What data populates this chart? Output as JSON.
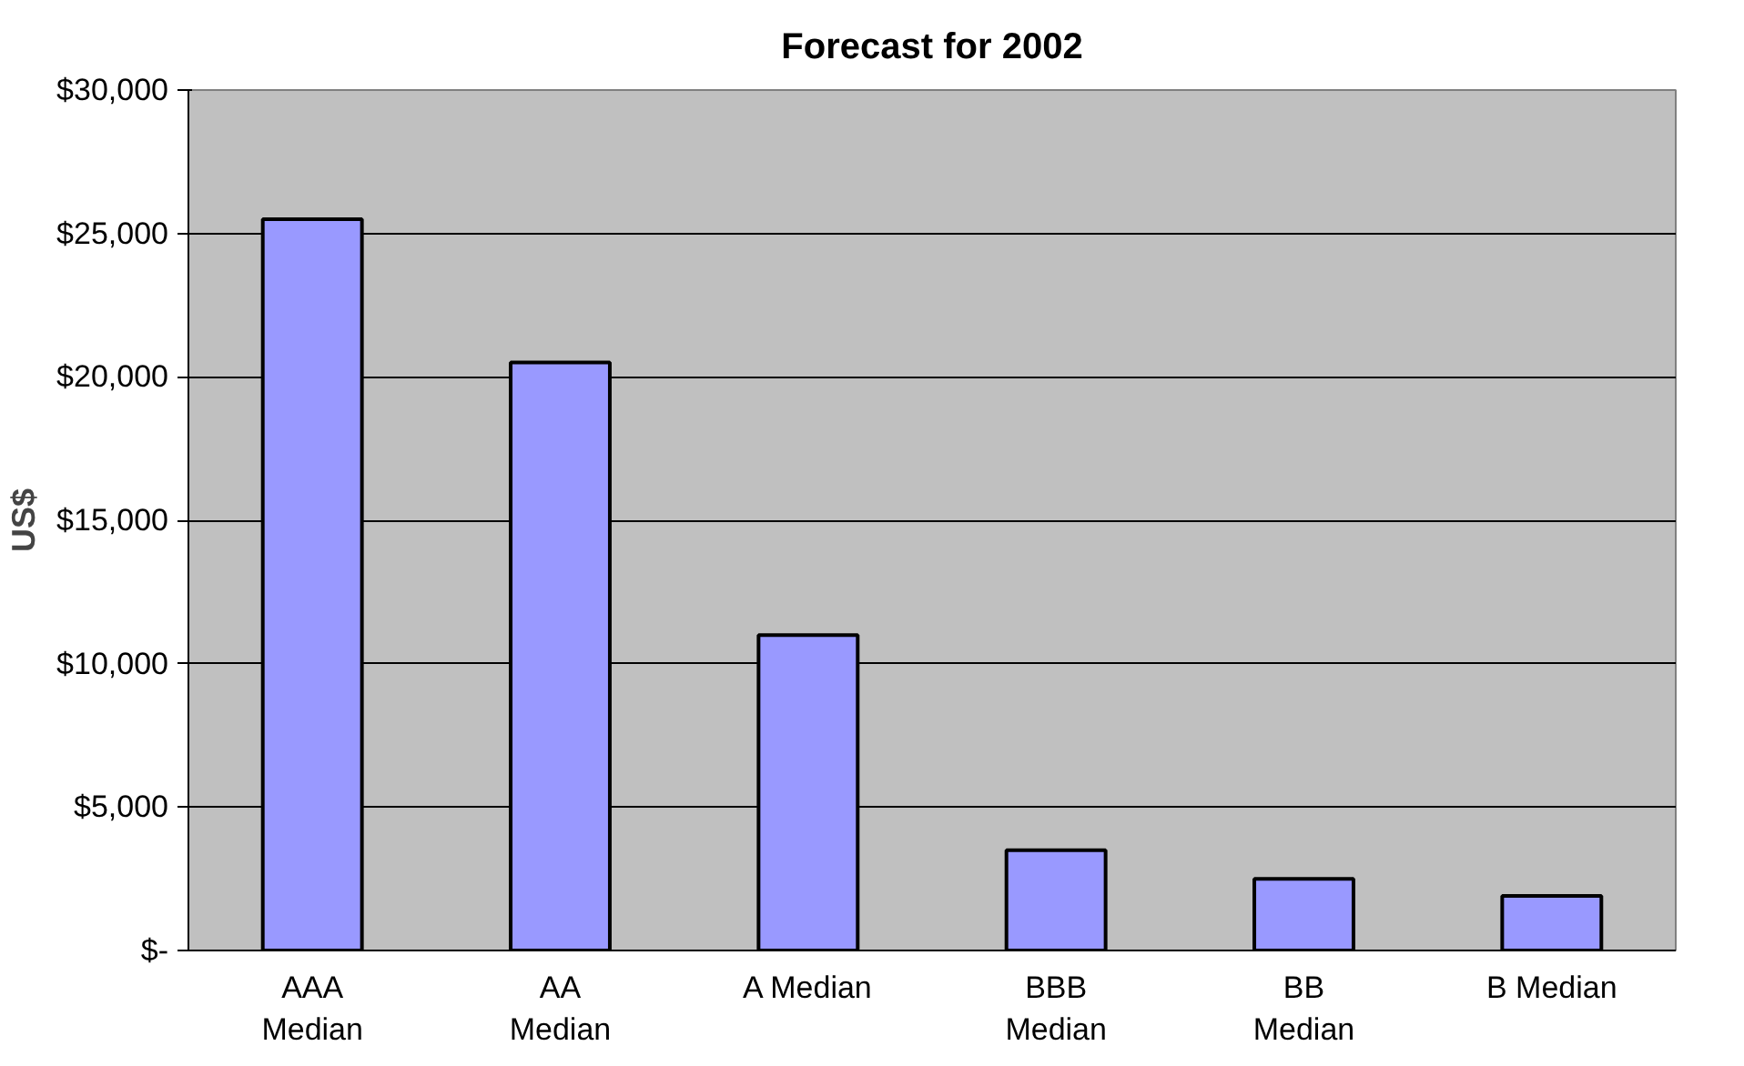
{
  "chart_data": {
    "type": "bar",
    "title": "Forecast for 2002",
    "ylabel": "US$",
    "categories": [
      "AAA Median",
      "AA Median",
      "A Median",
      "BBB Median",
      "BB Median",
      "B Median"
    ],
    "values": [
      25500,
      20500,
      11000,
      3500,
      2500,
      1900
    ],
    "color": "#9999ff",
    "ylim": [
      0,
      30000
    ],
    "yticks": [
      {
        "value": 0,
        "label": "$-"
      },
      {
        "value": 5000,
        "label": "$5,000"
      },
      {
        "value": 10000,
        "label": "$10,000"
      },
      {
        "value": 15000,
        "label": "$15,000"
      },
      {
        "value": 20000,
        "label": "$20,000"
      },
      {
        "value": 25000,
        "label": "$25,000"
      },
      {
        "value": 30000,
        "label": "$30,000"
      }
    ],
    "grid": "y"
  }
}
